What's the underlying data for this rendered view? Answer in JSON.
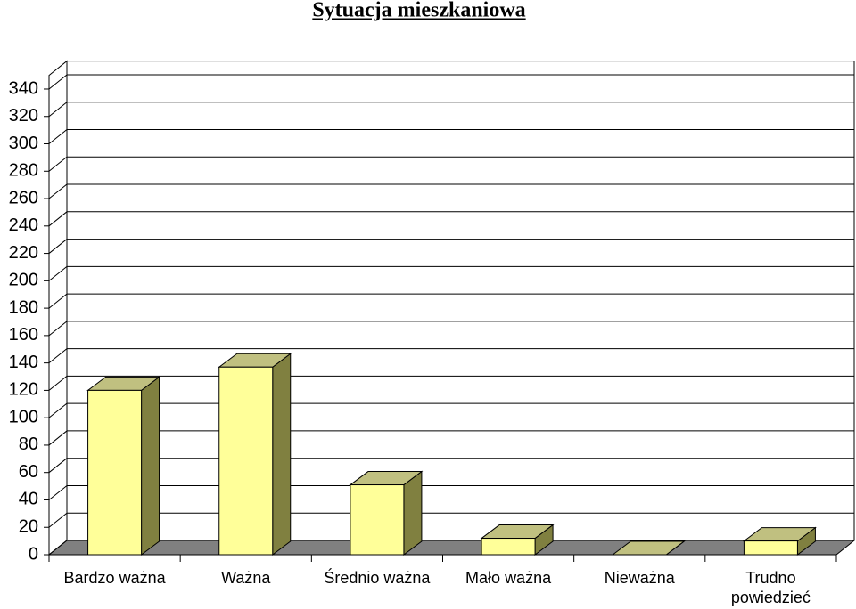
{
  "chart_data": {
    "type": "bar",
    "title": "Sytuacja mieszkaniowa",
    "categories": [
      "Bardzo ważna",
      "Ważna",
      "Średnio ważna",
      "Mało ważna",
      "Nieważna",
      "Trudno powiedzieć"
    ],
    "values": [
      120,
      137,
      51,
      12,
      0,
      10
    ],
    "color": "#ffff99",
    "ylim": [
      0,
      350
    ],
    "yticks": [
      0,
      20,
      40,
      60,
      80,
      100,
      120,
      140,
      160,
      180,
      200,
      220,
      240,
      260,
      280,
      300,
      320,
      340
    ],
    "grid": true
  }
}
